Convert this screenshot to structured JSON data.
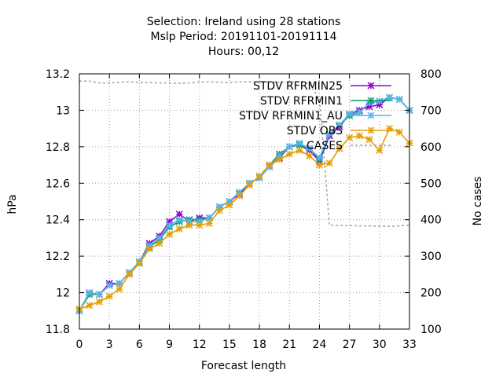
{
  "chart_data": {
    "type": "line",
    "title_lines": [
      "Selection: Ireland using    28 stations",
      "Mslp   Period: 20191101-20191114",
      "Hours:  00,12"
    ],
    "xlabel": "Forecast length",
    "ylabel": "hPa",
    "y2label": "No cases",
    "xlim": [
      0,
      33
    ],
    "ylim": [
      11.8,
      13.2
    ],
    "y2lim": [
      100,
      800
    ],
    "x_ticks": [
      0,
      3,
      6,
      9,
      12,
      15,
      18,
      21,
      24,
      27,
      30,
      33
    ],
    "y_ticks": [
      11.8,
      12,
      12.2,
      12.4,
      12.6,
      12.8,
      13,
      13.2
    ],
    "y_tick_labels": [
      "11.8",
      "12",
      "12.2",
      "12.4",
      "12.6",
      "12.8",
      "13",
      "13.2"
    ],
    "y2_ticks": [
      100,
      200,
      300,
      400,
      500,
      600,
      700,
      800
    ],
    "grid": true,
    "legend_position": "top-right",
    "x": [
      0,
      1,
      2,
      3,
      4,
      5,
      6,
      7,
      8,
      9,
      10,
      11,
      12,
      13,
      14,
      15,
      16,
      17,
      18,
      19,
      20,
      21,
      22,
      23,
      24,
      25,
      26,
      27,
      28,
      29,
      30,
      31,
      32,
      33
    ],
    "series": [
      {
        "name": "STDV RFRMIN25",
        "color": "#9400d3",
        "marker": "x",
        "axis": "y1",
        "values": [
          11.9,
          12.0,
          11.99,
          12.05,
          12.05,
          12.11,
          12.17,
          12.27,
          12.31,
          12.39,
          12.43,
          12.39,
          12.41,
          12.41,
          12.47,
          12.5,
          12.54,
          12.6,
          12.63,
          12.69,
          12.74,
          12.8,
          12.81,
          12.78,
          12.72,
          12.86,
          12.91,
          12.98,
          13.0,
          13.02,
          13.03,
          13.07,
          13.06,
          13.0
        ]
      },
      {
        "name": "STDV RFRMIN1",
        "color": "#009e73",
        "marker": "x",
        "axis": "y1",
        "values": [
          11.9,
          11.99,
          11.99,
          12.04,
          12.05,
          12.11,
          12.16,
          12.25,
          12.29,
          12.36,
          12.39,
          12.4,
          12.4,
          12.41,
          12.47,
          12.5,
          12.55,
          12.6,
          12.63,
          12.7,
          12.76,
          12.8,
          12.81,
          12.79,
          12.73,
          12.87,
          12.92,
          12.97,
          12.99,
          13.04,
          13.05,
          13.07,
          13.06,
          13.0
        ]
      },
      {
        "name": "STDV RFRMIN1_AU",
        "color": "#56b4e9",
        "marker": "x",
        "axis": "y1",
        "values": [
          11.9,
          12.0,
          11.99,
          12.04,
          12.05,
          12.11,
          12.17,
          12.26,
          12.3,
          12.37,
          12.4,
          12.39,
          12.39,
          12.41,
          12.47,
          12.5,
          12.55,
          12.6,
          12.63,
          12.69,
          12.75,
          12.8,
          12.82,
          12.79,
          12.74,
          12.87,
          12.92,
          12.98,
          12.99,
          13.04,
          13.05,
          13.07,
          13.06,
          13.0
        ]
      },
      {
        "name": "STDV OBS",
        "color": "#e69f00",
        "marker": "x",
        "axis": "y1",
        "values": [
          11.91,
          11.93,
          11.95,
          11.98,
          12.02,
          12.1,
          12.16,
          12.24,
          12.27,
          12.32,
          12.35,
          12.37,
          12.37,
          12.38,
          12.45,
          12.48,
          12.53,
          12.59,
          12.64,
          12.7,
          12.73,
          12.76,
          12.78,
          12.75,
          12.7,
          12.71,
          12.79,
          12.85,
          12.86,
          12.84,
          12.78,
          12.9,
          12.88,
          12.82
        ]
      },
      {
        "name": "CASES",
        "color": "#a0a0a0",
        "marker": "none",
        "dash": true,
        "axis": "y2",
        "values": [
          780,
          780,
          775,
          775,
          777,
          778,
          777,
          776,
          775,
          775,
          774,
          775,
          778,
          778,
          777,
          776,
          778,
          778,
          778,
          778,
          777,
          778,
          778,
          774,
          730,
          385,
          384,
          384,
          383,
          383,
          382,
          382,
          383,
          385
        ]
      }
    ]
  }
}
